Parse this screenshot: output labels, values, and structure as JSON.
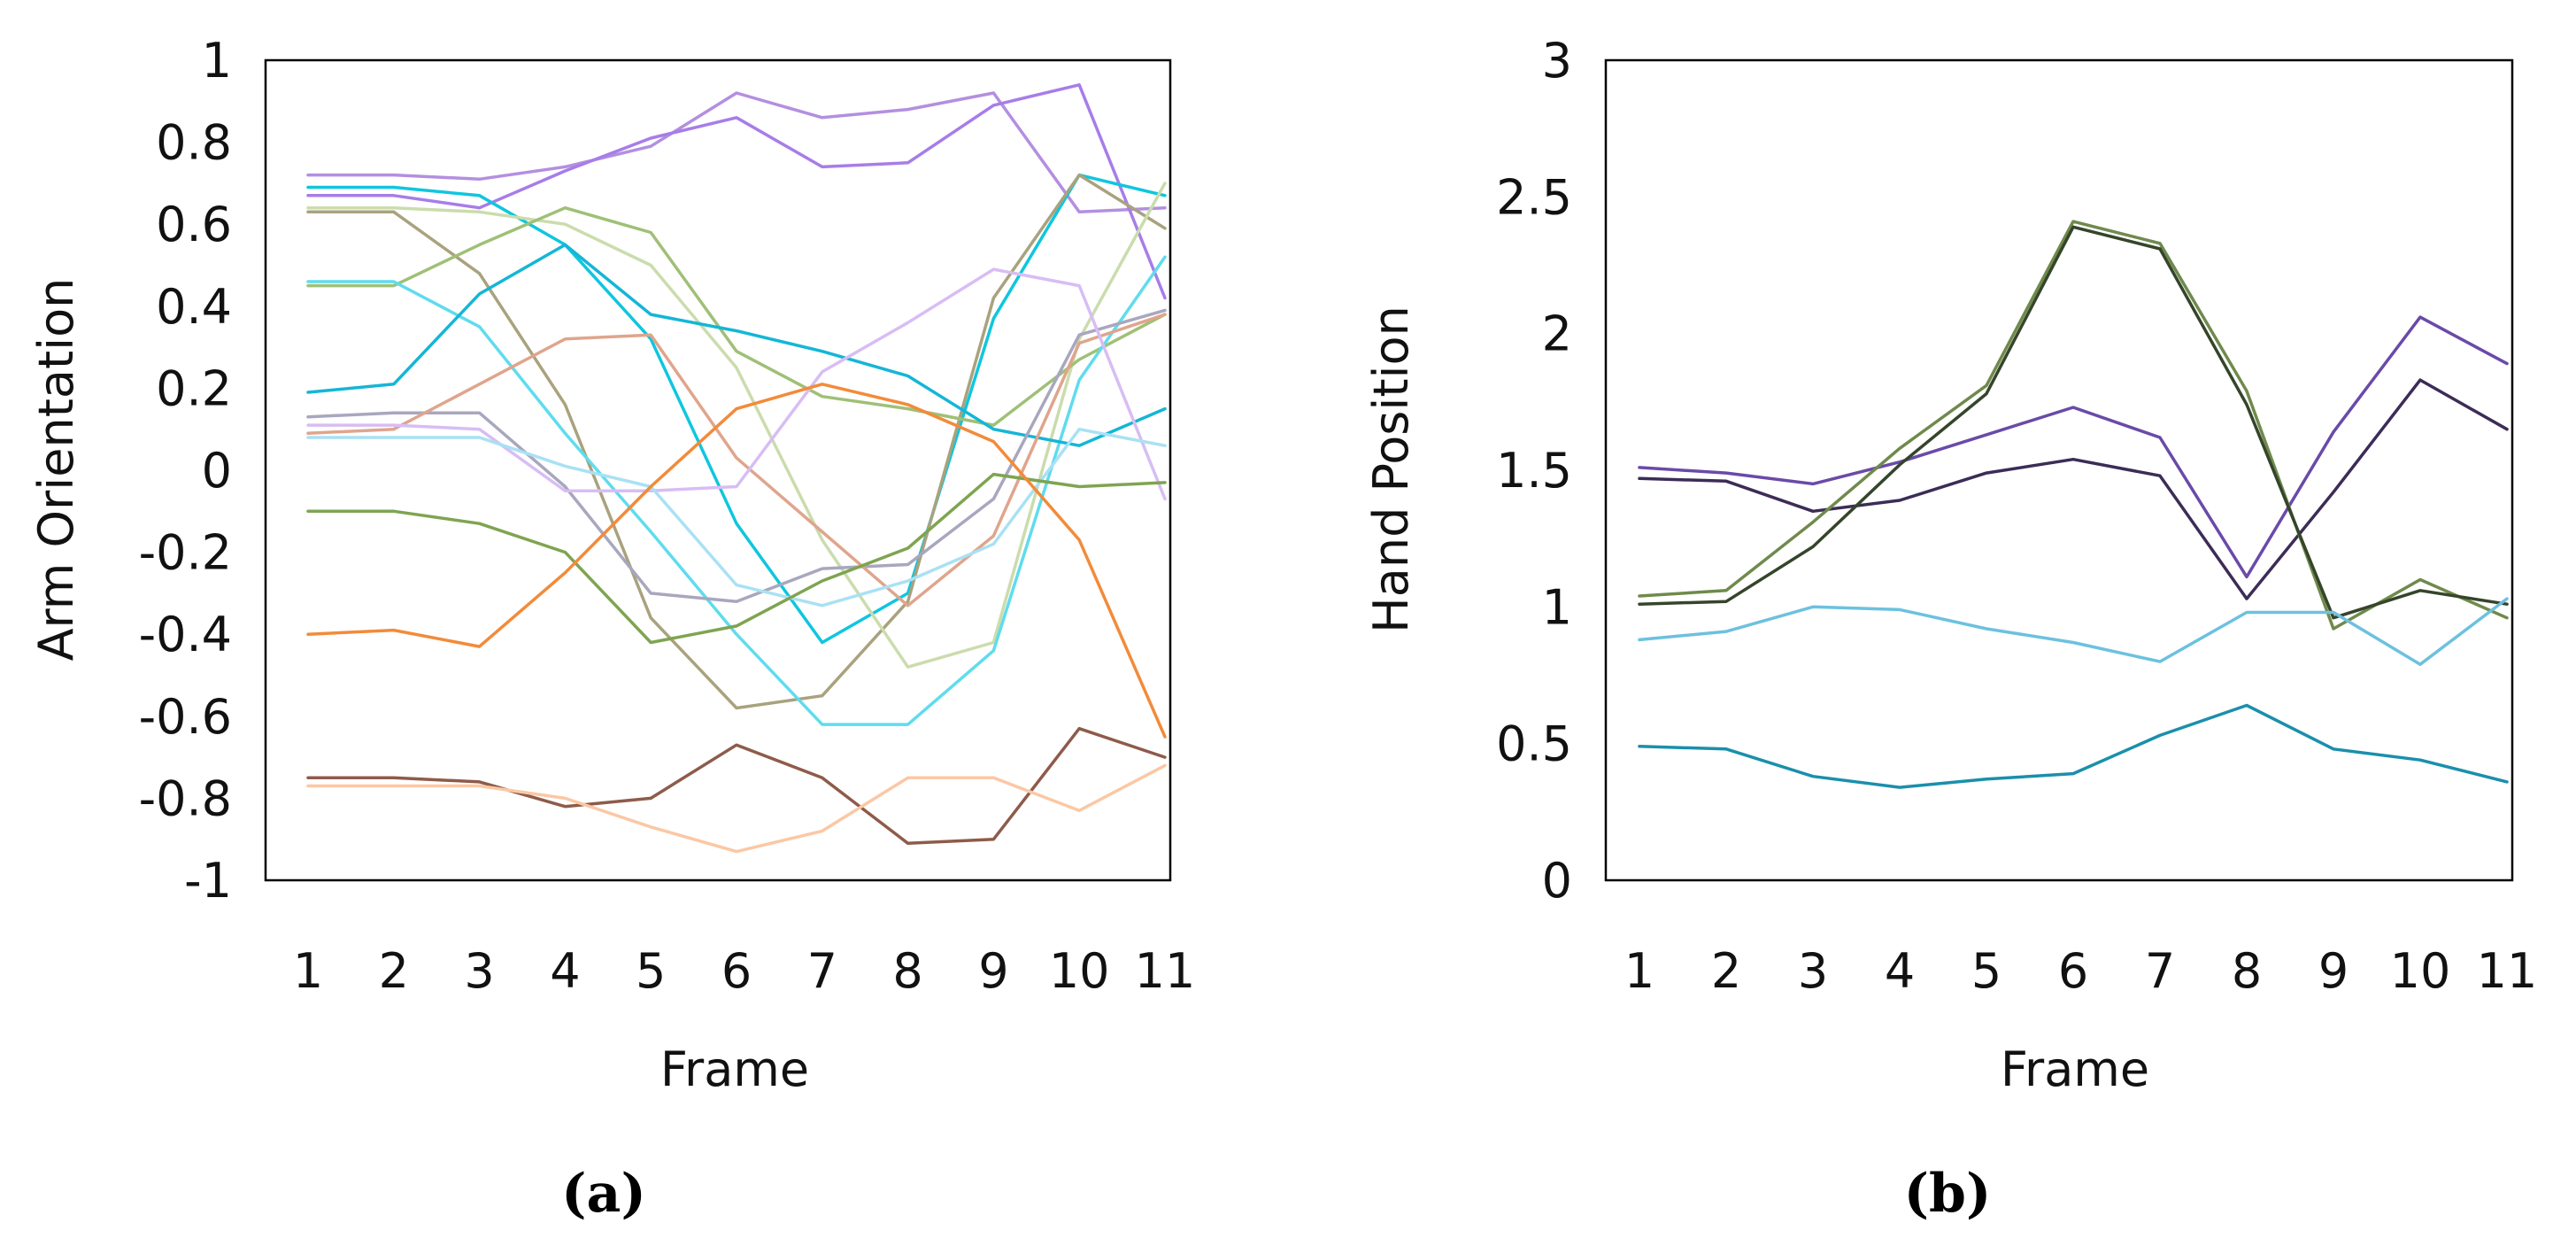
{
  "chart_data": [
    {
      "type": "line",
      "panel_label": "(a)",
      "xlabel": "Frame",
      "ylabel": "Arm  Orientation",
      "categories": [
        "1",
        "2",
        "3",
        "4",
        "5",
        "6",
        "7",
        "8",
        "9",
        "10",
        "11"
      ],
      "ylim": [
        -1,
        1
      ],
      "yticks": [
        1,
        0.8,
        0.6,
        0.4,
        0.2,
        0,
        -0.2,
        -0.4,
        -0.6,
        -0.8,
        -1
      ],
      "ytick_labels": [
        "1",
        "0.8",
        "0.6",
        "0.4",
        "0.2",
        "0",
        "-0.2",
        "-0.4",
        "-0.6",
        "-0.8",
        "-1"
      ],
      "grid": false,
      "legend": "none",
      "series": [
        {
          "name": "s1",
          "color": "#b38fe0",
          "values": [
            0.72,
            0.72,
            0.71,
            0.74,
            0.79,
            0.92,
            0.86,
            0.88,
            0.92,
            0.63,
            0.64
          ]
        },
        {
          "name": "s2",
          "color": "#a77de8",
          "values": [
            0.67,
            0.67,
            0.64,
            0.73,
            0.81,
            0.86,
            0.74,
            0.75,
            0.89,
            0.94,
            0.42
          ]
        },
        {
          "name": "s3",
          "color": "#0fc6de",
          "values": [
            0.69,
            0.69,
            0.67,
            0.55,
            0.32,
            -0.13,
            -0.42,
            -0.3,
            0.37,
            0.72,
            0.67
          ]
        },
        {
          "name": "s4",
          "color": "#a9a27e",
          "values": [
            0.63,
            0.63,
            0.48,
            0.16,
            -0.36,
            -0.58,
            -0.55,
            -0.32,
            0.42,
            0.72,
            0.59
          ]
        },
        {
          "name": "s5",
          "color": "#cbdcad",
          "values": [
            0.64,
            0.64,
            0.63,
            0.6,
            0.5,
            0.25,
            -0.17,
            -0.48,
            -0.42,
            0.32,
            0.7
          ]
        },
        {
          "name": "s6",
          "color": "#9fc077",
          "values": [
            0.45,
            0.45,
            0.55,
            0.64,
            0.58,
            0.29,
            0.18,
            0.15,
            0.11,
            0.27,
            0.38
          ]
        },
        {
          "name": "s7",
          "color": "#5fdcee",
          "values": [
            0.46,
            0.46,
            0.35,
            0.09,
            -0.15,
            -0.4,
            -0.62,
            -0.62,
            -0.44,
            0.22,
            0.52
          ]
        },
        {
          "name": "s8",
          "color": "#14b6d6",
          "values": [
            0.19,
            0.21,
            0.43,
            0.55,
            0.38,
            0.34,
            0.29,
            0.23,
            0.1,
            0.06,
            0.15
          ]
        },
        {
          "name": "s9",
          "color": "#a8a7be",
          "values": [
            0.13,
            0.14,
            0.14,
            -0.04,
            -0.3,
            -0.32,
            -0.24,
            -0.23,
            -0.07,
            0.33,
            0.39
          ]
        },
        {
          "name": "s10",
          "color": "#dfa58c",
          "values": [
            0.09,
            0.1,
            0.21,
            0.32,
            0.33,
            0.03,
            -0.15,
            -0.33,
            -0.16,
            0.31,
            0.38
          ]
        },
        {
          "name": "s11",
          "color": "#d8bdf4",
          "values": [
            0.11,
            0.11,
            0.1,
            -0.05,
            -0.05,
            -0.04,
            0.24,
            0.36,
            0.49,
            0.45,
            -0.07
          ]
        },
        {
          "name": "s12",
          "color": "#a9e1f4",
          "values": [
            0.08,
            0.08,
            0.08,
            0.01,
            -0.04,
            -0.28,
            -0.33,
            -0.27,
            -0.18,
            0.1,
            0.06
          ]
        },
        {
          "name": "s13",
          "color": "#7fa451",
          "values": [
            -0.1,
            -0.1,
            -0.13,
            -0.2,
            -0.42,
            -0.38,
            -0.27,
            -0.19,
            -0.01,
            -0.04,
            -0.03
          ]
        },
        {
          "name": "s14",
          "color": "#f28b3a",
          "values": [
            -0.4,
            -0.39,
            -0.43,
            -0.25,
            -0.04,
            0.15,
            0.21,
            0.16,
            0.07,
            -0.17,
            -0.65
          ]
        },
        {
          "name": "s15",
          "color": "#8e5b4a",
          "values": [
            -0.75,
            -0.75,
            -0.76,
            -0.82,
            -0.8,
            -0.67,
            -0.75,
            -0.91,
            -0.9,
            -0.63,
            -0.7
          ]
        },
        {
          "name": "s16",
          "color": "#fbc8a4",
          "values": [
            -0.77,
            -0.77,
            -0.77,
            -0.8,
            -0.87,
            -0.93,
            -0.88,
            -0.75,
            -0.75,
            -0.83,
            -0.72
          ]
        }
      ]
    },
    {
      "type": "line",
      "panel_label": "(b)",
      "xlabel": "Frame",
      "ylabel": "Hand  Position",
      "categories": [
        "1",
        "2",
        "3",
        "4",
        "5",
        "6",
        "7",
        "8",
        "9",
        "10",
        "11"
      ],
      "ylim": [
        0,
        3
      ],
      "yticks": [
        3,
        2.5,
        2,
        1.5,
        1,
        0.5,
        0
      ],
      "ytick_labels": [
        "3",
        "2.5",
        "2",
        "1.5",
        "1",
        "0.5",
        "0"
      ],
      "grid": false,
      "legend": "none",
      "series": [
        {
          "name": "s1",
          "color": "#6a4aa8",
          "values": [
            1.51,
            1.49,
            1.45,
            1.53,
            1.63,
            1.73,
            1.62,
            1.11,
            1.64,
            2.06,
            1.89
          ]
        },
        {
          "name": "s2",
          "color": "#3c2c57",
          "values": [
            1.47,
            1.46,
            1.35,
            1.39,
            1.49,
            1.54,
            1.48,
            1.03,
            1.42,
            1.83,
            1.65
          ]
        },
        {
          "name": "s3",
          "color": "#6f8a4c",
          "values": [
            1.04,
            1.06,
            1.31,
            1.58,
            1.81,
            2.41,
            2.33,
            1.79,
            0.92,
            1.1,
            0.96
          ]
        },
        {
          "name": "s4",
          "color": "#35452a",
          "values": [
            1.01,
            1.02,
            1.22,
            1.52,
            1.78,
            2.39,
            2.31,
            1.74,
            0.96,
            1.06,
            1.01
          ]
        },
        {
          "name": "s5",
          "color": "#6cc1df",
          "values": [
            0.88,
            0.91,
            1.0,
            0.99,
            0.92,
            0.87,
            0.8,
            0.98,
            0.98,
            0.79,
            1.03
          ]
        },
        {
          "name": "s6",
          "color": "#1a8fac",
          "values": [
            0.49,
            0.48,
            0.38,
            0.34,
            0.37,
            0.39,
            0.53,
            0.64,
            0.48,
            0.44,
            0.36
          ]
        }
      ]
    }
  ]
}
